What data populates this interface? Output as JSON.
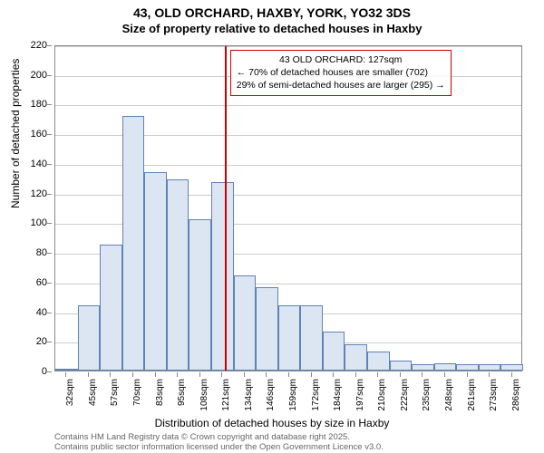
{
  "chart": {
    "type": "histogram",
    "title_main": "43, OLD ORCHARD, HAXBY, YORK, YO32 3DS",
    "title_sub": "Size of property relative to detached houses in Haxby",
    "title_fontsize": 14,
    "subtitle_fontsize": 13,
    "y_axis": {
      "label": "Number of detached properties",
      "min": 0,
      "max": 220,
      "tick_step": 20,
      "ticks": [
        0,
        20,
        40,
        60,
        80,
        100,
        120,
        140,
        160,
        180,
        200,
        220
      ],
      "label_fontsize": 12
    },
    "x_axis": {
      "label": "Distribution of detached houses by size in Haxby",
      "tick_labels": [
        "32sqm",
        "45sqm",
        "57sqm",
        "70sqm",
        "83sqm",
        "95sqm",
        "108sqm",
        "121sqm",
        "134sqm",
        "146sqm",
        "159sqm",
        "172sqm",
        "184sqm",
        "197sqm",
        "210sqm",
        "222sqm",
        "235sqm",
        "248sqm",
        "261sqm",
        "273sqm",
        "286sqm"
      ],
      "label_fontsize": 12
    },
    "bars": {
      "values": [
        1,
        44,
        85,
        172,
        134,
        129,
        102,
        127,
        64,
        56,
        44,
        44,
        26,
        18,
        13,
        7,
        4,
        5,
        4,
        4,
        4
      ],
      "fill_color": "#dce5f2",
      "border_color": "#6082b6",
      "bar_width_ratio": 1.0
    },
    "marker": {
      "position_index": 7.6,
      "color": "#cc0000",
      "width": 2
    },
    "annotation": {
      "lines": [
        "43 OLD ORCHARD: 127sqm",
        "← 70% of detached houses are smaller (702)",
        "29% of semi-detached houses are larger (295) →"
      ],
      "border_color": "#cc0000",
      "fontsize": 10.5
    },
    "grid": {
      "color": "#cccccc",
      "horizontal": true
    },
    "background_color": "#ffffff",
    "plot_border_color": "#888888"
  },
  "footer": {
    "line1": "Contains HM Land Registry data © Crown copyright and database right 2025.",
    "line2": "Contains public sector information licensed under the Open Government Licence v3.0.",
    "color": "#666666",
    "fontsize": 9.5
  }
}
